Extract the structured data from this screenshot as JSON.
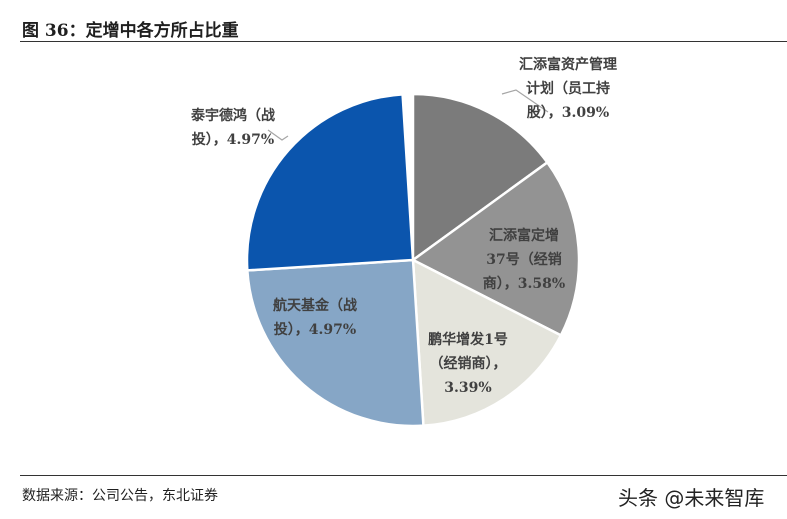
{
  "figure": {
    "title": "图 36：定增中各方所占比重",
    "source": "数据来源：公司公告，东北证券",
    "watermark": "头条 @未来智库"
  },
  "chart_data": {
    "type": "pie",
    "title": "",
    "start_angle_deg": 0,
    "direction": "clockwise",
    "slices": [
      {
        "label": "汇添富资产管理计划（员工持股），3.09%",
        "label_lines": [
          "汇添富资产管理",
          "计划（员工持",
          "股），3.09%"
        ],
        "percent": 3.09,
        "share": 0.15,
        "color": "#7b7b7b",
        "label_color": "#404040"
      },
      {
        "label": "汇添富定增37号（经销商），3.58%",
        "label_lines": [
          "汇添富定增",
          "37号（经销",
          "商），3.58%"
        ],
        "percent": 3.58,
        "share": 0.175,
        "color": "#939393",
        "label_color": "#404040"
      },
      {
        "label": "鹏华增发1号（经销商），3.39%",
        "label_lines": [
          "鹏华增发1号",
          "（经销商），",
          "3.39%"
        ],
        "percent": 3.39,
        "share": 0.165,
        "color": "#e4e4dc",
        "label_color": "#404040"
      },
      {
        "label": "航天基金（战投），4.97%",
        "label_lines": [
          "航天基金（战",
          "投），4.97%"
        ],
        "percent": 4.97,
        "share": 0.25,
        "color": "#86a6c6",
        "label_color": "#404040"
      },
      {
        "label": "泰宇德鸿（战投），4.97%",
        "label_lines": [
          "泰宇德鸿（战",
          "投），4.97%"
        ],
        "percent": 4.97,
        "share": 0.25,
        "color": "#0b55ad",
        "label_color": "#404040"
      }
    ]
  }
}
